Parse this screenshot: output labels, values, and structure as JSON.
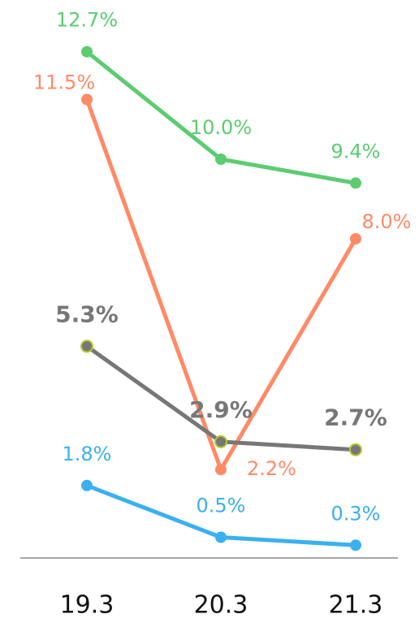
{
  "chart_data": {
    "type": "line",
    "categories": [
      "19.3",
      "20.3",
      "21.3"
    ],
    "ylim": [
      0,
      14
    ],
    "series": [
      {
        "color": "#5ccc70",
        "values": [
          12.7,
          10.0,
          9.4
        ],
        "value_labels": [
          "12.7%",
          "10.0%",
          "9.4%"
        ]
      },
      {
        "color": "#ff8a65",
        "values": [
          11.5,
          2.2,
          8.0
        ],
        "value_labels": [
          "11.5%",
          "2.2%",
          "8.0%"
        ]
      },
      {
        "color": "#777777",
        "marker_edge_color": "#b5c92a",
        "bold_labels": true,
        "values": [
          5.3,
          2.9,
          2.7
        ],
        "value_labels": [
          "5.3%",
          "2.9%",
          "2.7%"
        ]
      },
      {
        "color": "#3ab0f0",
        "values": [
          1.8,
          0.5,
          0.3
        ],
        "value_labels": [
          "1.8%",
          "0.5%",
          "0.3%"
        ]
      }
    ]
  }
}
